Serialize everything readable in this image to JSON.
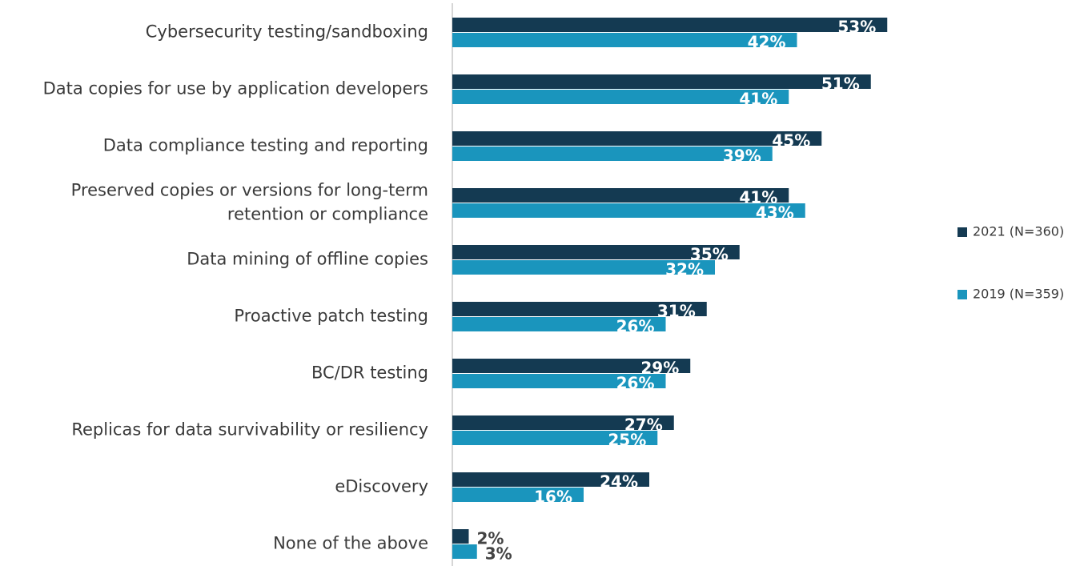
{
  "chart_data": {
    "type": "bar",
    "orientation": "horizontal",
    "categories": [
      "Cybersecurity testing/sandboxing",
      "Data copies for use by application developers",
      "Data compliance testing and reporting",
      "Preserved copies or versions for long-term\nretention or compliance",
      "Data mining of offline copies",
      "Proactive patch testing",
      "BC/DR testing",
      "Replicas for data survivability or resiliency",
      "eDiscovery",
      "None of the above"
    ],
    "series": [
      {
        "name": "2021 (N=360)",
        "color": "#143a52",
        "values": [
          53,
          51,
          45,
          41,
          35,
          31,
          29,
          27,
          24,
          2
        ],
        "value_labels": [
          "53%",
          "51%",
          "45%",
          "41%",
          "35%",
          "31%",
          "29%",
          "27%",
          "24%",
          "2%"
        ]
      },
      {
        "name": "2019 (N=359)",
        "color": "#1a95bd",
        "values": [
          42,
          41,
          39,
          43,
          32,
          26,
          26,
          25,
          16,
          3
        ],
        "value_labels": [
          "42%",
          "41%",
          "39%",
          "43%",
          "32%",
          "26%",
          "26%",
          "25%",
          "16%",
          "3%"
        ]
      }
    ],
    "xlim": [
      0,
      60
    ],
    "legend": "right"
  }
}
